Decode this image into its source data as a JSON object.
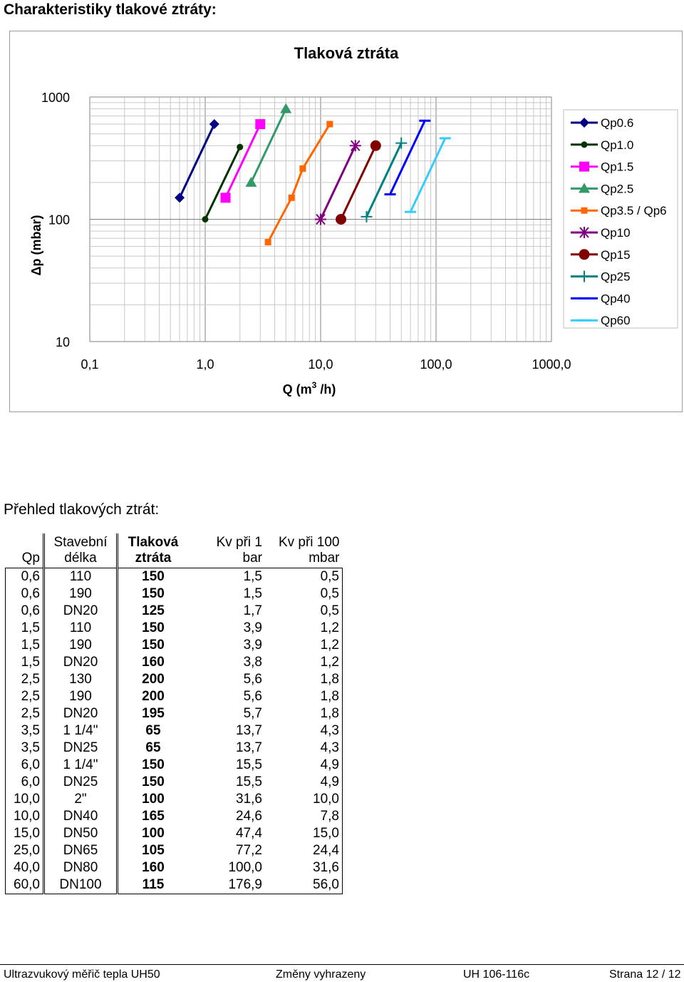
{
  "page_heading": "Charakteristiky tlakové ztráty:",
  "chart_data": {
    "type": "line",
    "title": "Tlaková ztráta",
    "xlabel": "Q (m3/h)",
    "ylabel": "Δp (mbar)",
    "x_scale": "log",
    "y_scale": "log",
    "xlim": [
      0.1,
      1000
    ],
    "ylim": [
      10,
      1000
    ],
    "x_ticks": [
      "0,1",
      "1,0",
      "10,0",
      "100,0",
      "1000,0"
    ],
    "y_ticks": [
      "10",
      "100",
      "1000"
    ],
    "grid": true,
    "legend_position": "right",
    "series": [
      {
        "name": "Qp0.6",
        "color": "#000080",
        "marker": "diamond",
        "points": [
          [
            0.6,
            150
          ],
          [
            1.2,
            600
          ]
        ]
      },
      {
        "name": "Qp1.0",
        "color": "#003300",
        "marker": "circle",
        "points": [
          [
            1.0,
            100
          ],
          [
            2.0,
            390
          ]
        ]
      },
      {
        "name": "Qp1.5",
        "color": "#ff00ff",
        "marker": "square",
        "points": [
          [
            1.5,
            150
          ],
          [
            3.0,
            600
          ]
        ]
      },
      {
        "name": "Qp2.5",
        "color": "#339966",
        "marker": "triangle",
        "points": [
          [
            2.5,
            200
          ],
          [
            5.0,
            800
          ]
        ]
      },
      {
        "name": "Qp3.5 / Qp6",
        "color": "#ff6600",
        "marker": "small-square",
        "points": [
          [
            3.5,
            65
          ],
          [
            5.6,
            150
          ],
          [
            7.0,
            260
          ],
          [
            12.0,
            600
          ]
        ]
      },
      {
        "name": "Qp10",
        "color": "#800080",
        "marker": "star",
        "points": [
          [
            10.0,
            100
          ],
          [
            20.0,
            400
          ]
        ]
      },
      {
        "name": "Qp15",
        "color": "#800000",
        "marker": "big-circle",
        "points": [
          [
            15.0,
            100
          ],
          [
            30.0,
            400
          ]
        ]
      },
      {
        "name": "Qp25",
        "color": "#008080",
        "marker": "plus",
        "points": [
          [
            25.0,
            105
          ],
          [
            50.0,
            420
          ]
        ]
      },
      {
        "name": "Qp40",
        "color": "#0000ff",
        "marker": "dash",
        "points": [
          [
            40.0,
            160
          ],
          [
            80.0,
            640
          ]
        ]
      },
      {
        "name": "Qp60",
        "color": "#33ccff",
        "marker": "dash",
        "points": [
          [
            60.0,
            115
          ],
          [
            120.0,
            460
          ]
        ]
      }
    ]
  },
  "chart_labels": {
    "xlabel_main": "Q (m",
    "xlabel_sup": "3",
    "xlabel_tail": " /h)"
  },
  "section_heading": "Přehled tlakových ztrát:",
  "table": {
    "headers": {
      "qp": "Qp",
      "len_1": "Stavební",
      "len_2": "délka",
      "drop_1": "Tlaková",
      "drop_2": "ztráta",
      "kv1_1": "Kv při 1",
      "kv1_2": "bar",
      "kv100_1": "Kv při 100",
      "kv100_2": "mbar"
    },
    "rows": [
      [
        "0,6",
        "110",
        "150",
        "1,5",
        "0,5"
      ],
      [
        "0,6",
        "190",
        "150",
        "1,5",
        "0,5"
      ],
      [
        "0,6",
        "DN20",
        "125",
        "1,7",
        "0,5"
      ],
      [
        "1,5",
        "110",
        "150",
        "3,9",
        "1,2"
      ],
      [
        "1,5",
        "190",
        "150",
        "3,9",
        "1,2"
      ],
      [
        "1,5",
        "DN20",
        "160",
        "3,8",
        "1,2"
      ],
      [
        "2,5",
        "130",
        "200",
        "5,6",
        "1,8"
      ],
      [
        "2,5",
        "190",
        "200",
        "5,6",
        "1,8"
      ],
      [
        "2,5",
        "DN20",
        "195",
        "5,7",
        "1,8"
      ],
      [
        "3,5",
        "1 1/4\"",
        "65",
        "13,7",
        "4,3"
      ],
      [
        "3,5",
        "DN25",
        "65",
        "13,7",
        "4,3"
      ],
      [
        "6,0",
        "1 1/4\"",
        "150",
        "15,5",
        "4,9"
      ],
      [
        "6,0",
        "DN25",
        "150",
        "15,5",
        "4,9"
      ],
      [
        "10,0",
        "2\"",
        "100",
        "31,6",
        "10,0"
      ],
      [
        "10,0",
        "DN40",
        "165",
        "24,6",
        "7,8"
      ],
      [
        "15,0",
        "DN50",
        "100",
        "47,4",
        "15,0"
      ],
      [
        "25,0",
        "DN65",
        "105",
        "77,2",
        "24,4"
      ],
      [
        "40,0",
        "DN80",
        "160",
        "100,0",
        "31,6"
      ],
      [
        "60,0",
        "DN100",
        "115",
        "176,9",
        "56,0"
      ]
    ]
  },
  "footer": {
    "product": "Ultrazvukový měřič tepla UH50",
    "note": "Změny vyhrazeny",
    "doc_id": "UH 106-116c",
    "page": "Strana 12 / 12"
  }
}
